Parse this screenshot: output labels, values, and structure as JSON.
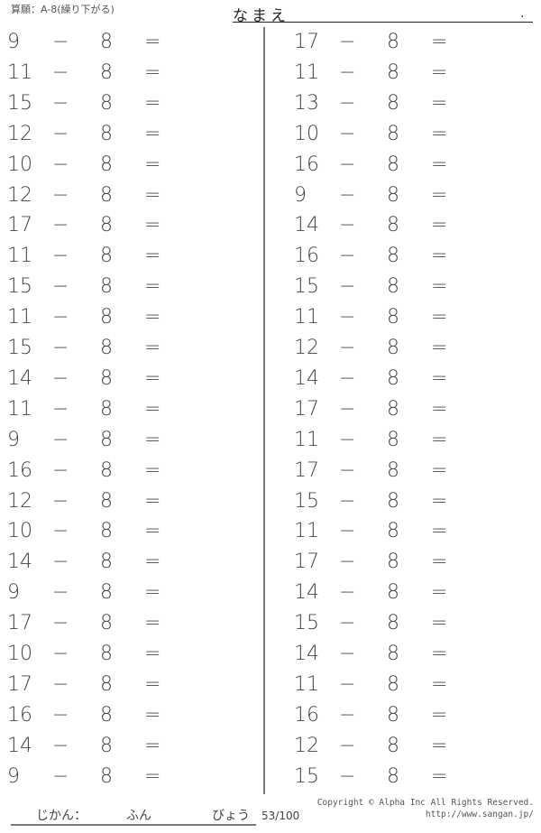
{
  "header": {
    "title": "算願：A-8(繰り下がる)",
    "name_label": "なまえ",
    "name_end": "."
  },
  "subtrahend": "8",
  "minus": "−",
  "equals": "=",
  "left_column": [
    "9",
    "11",
    "15",
    "12",
    "10",
    "12",
    "17",
    "11",
    "15",
    "11",
    "15",
    "14",
    "11",
    "9",
    "16",
    "12",
    "10",
    "14",
    "9",
    "17",
    "10",
    "17",
    "16",
    "14",
    "9"
  ],
  "right_column": [
    "17",
    "11",
    "13",
    "10",
    "16",
    "9",
    "14",
    "16",
    "15",
    "11",
    "12",
    "14",
    "17",
    "11",
    "17",
    "15",
    "11",
    "17",
    "14",
    "15",
    "14",
    "11",
    "16",
    "12",
    "15"
  ],
  "footer": {
    "time_label": "じかん：",
    "minutes_label": "ふん",
    "seconds_label": "びょう",
    "page": "53/100",
    "copyright": "Copyright © Alpha Inc All Rights Reserved.",
    "url": "http://www.sangan.jp/"
  }
}
